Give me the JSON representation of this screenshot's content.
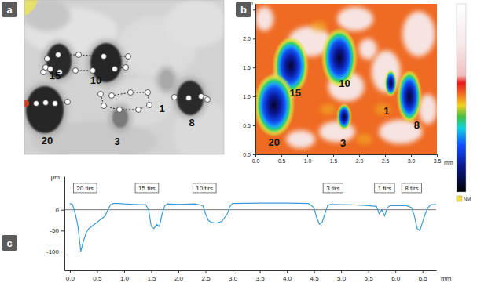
{
  "chart_data": [
    {
      "type": "image",
      "panel_label": "a",
      "labels": [
        "15",
        "10",
        "1",
        "8",
        "20",
        "3"
      ]
    },
    {
      "type": "heatmap",
      "panel_label": "b",
      "xlabel": "mm",
      "ylabel": "mm",
      "xlim": [
        0,
        3.5
      ],
      "ylim": [
        0,
        2.6
      ],
      "xticks": [
        {
          "value": 0,
          "label": "0.0"
        },
        {
          "value": 0.5,
          "label": "0.5"
        },
        {
          "value": 1,
          "label": "1.0"
        },
        {
          "value": 1.5,
          "label": "1.5"
        },
        {
          "value": 2,
          "label": "2.0"
        },
        {
          "value": 2.5,
          "label": "2.5"
        },
        {
          "value": 3,
          "label": "3.0"
        },
        {
          "value": 3.5,
          "label": "3.5"
        }
      ],
      "yticks": [
        {
          "value": 0,
          "label": "0.0"
        },
        {
          "value": 0.5,
          "label": "0.5"
        },
        {
          "value": 1,
          "label": "1.0"
        },
        {
          "value": 1.5,
          "label": "1.5"
        },
        {
          "value": 2,
          "label": "2.0"
        },
        {
          "value": 2.5,
          "label": "2.5"
        }
      ],
      "craters": [
        {
          "label": "15",
          "x": 0.68,
          "y": 1.53,
          "rx": 0.29,
          "ry": 0.44,
          "label_x": 0.77,
          "label_y": 1.07
        },
        {
          "label": "10",
          "x": 1.62,
          "y": 1.67,
          "rx": 0.29,
          "ry": 0.45,
          "label_x": 1.72,
          "label_y": 1.23
        },
        {
          "label": "1",
          "x": 2.61,
          "y": 1.23,
          "rx": 0.1,
          "ry": 0.2,
          "label_x": 2.53,
          "label_y": 0.76
        },
        {
          "label": "8",
          "x": 2.97,
          "y": 1.0,
          "rx": 0.2,
          "ry": 0.4,
          "label_x": 3.11,
          "label_y": 0.52
        },
        {
          "label": "20",
          "x": 0.36,
          "y": 0.85,
          "rx": 0.33,
          "ry": 0.48,
          "label_x": 0.36,
          "label_y": 0.21
        },
        {
          "label": "3",
          "x": 1.71,
          "y": 0.65,
          "rx": 0.12,
          "ry": 0.2,
          "label_x": 1.69,
          "label_y": 0.2
        }
      ],
      "colorbar_label": "NM"
    },
    {
      "type": "line",
      "panel_label": "c",
      "xlabel": "mm",
      "ylabel": "µm",
      "xlim": [
        -0.1,
        6.75
      ],
      "ylim": [
        -145,
        80
      ],
      "xticks": [
        {
          "value": 0,
          "label": "0.0"
        },
        {
          "value": 0.5,
          "label": "0.5"
        },
        {
          "value": 1,
          "label": "1.0"
        },
        {
          "value": 1.5,
          "label": "1.5"
        },
        {
          "value": 2,
          "label": "2.0"
        },
        {
          "value": 2.5,
          "label": "2.5"
        },
        {
          "value": 3,
          "label": "3.0"
        },
        {
          "value": 3.5,
          "label": "3.5"
        },
        {
          "value": 4,
          "label": "4.0"
        },
        {
          "value": 4.5,
          "label": "4.5"
        },
        {
          "value": 5,
          "label": "5.0"
        },
        {
          "value": 5.5,
          "label": "5.5"
        },
        {
          "value": 6,
          "label": "6.0"
        },
        {
          "value": 6.5,
          "label": "6.5"
        }
      ],
      "yticks": [
        -100,
        -50,
        0
      ],
      "reference_lines": [
        0
      ],
      "color": "#3c9bd6",
      "x": [
        0.0,
        0.05,
        0.1,
        0.15,
        0.2,
        0.25,
        0.3,
        0.35,
        0.4,
        0.5,
        0.6,
        0.65,
        0.7,
        0.75,
        0.8,
        0.9,
        1.0,
        1.2,
        1.4,
        1.45,
        1.5,
        1.55,
        1.6,
        1.65,
        1.7,
        1.75,
        1.8,
        2.0,
        2.3,
        2.45,
        2.5,
        2.55,
        2.6,
        2.7,
        2.8,
        2.9,
        2.95,
        3.0,
        3.5,
        4.0,
        4.4,
        4.5,
        4.55,
        4.6,
        4.65,
        4.7,
        4.75,
        4.8,
        5.2,
        5.5,
        5.65,
        5.7,
        5.75,
        5.8,
        5.85,
        5.9,
        6.2,
        6.3,
        6.35,
        6.4,
        6.45,
        6.5,
        6.55,
        6.6,
        6.65,
        6.75
      ],
      "values": [
        15,
        12,
        -10,
        -40,
        -100,
        -75,
        -55,
        -45,
        -40,
        -30,
        -20,
        -15,
        0,
        12,
        15,
        15,
        14,
        13,
        12,
        0,
        -40,
        -45,
        -35,
        -40,
        -10,
        10,
        14,
        13,
        14,
        10,
        -10,
        -25,
        -30,
        -32,
        -28,
        -10,
        8,
        15,
        16,
        16,
        15,
        5,
        -20,
        -35,
        -30,
        -10,
        10,
        13,
        12,
        10,
        8,
        -10,
        0,
        -15,
        5,
        10,
        10,
        5,
        -15,
        -45,
        -50,
        -30,
        -10,
        5,
        12,
        13
      ],
      "annotations": [
        {
          "text": "20 tirs",
          "x": 0.28,
          "y": 52
        },
        {
          "text": "15 tirs",
          "x": 1.42,
          "y": 52
        },
        {
          "text": "10 tirs",
          "x": 2.48,
          "y": 52
        },
        {
          "text": "3 tirs",
          "x": 4.85,
          "y": 52
        },
        {
          "text": "1 tirs",
          "x": 5.8,
          "y": 52
        },
        {
          "text": "8 tirs",
          "x": 6.3,
          "y": 52
        }
      ]
    }
  ]
}
